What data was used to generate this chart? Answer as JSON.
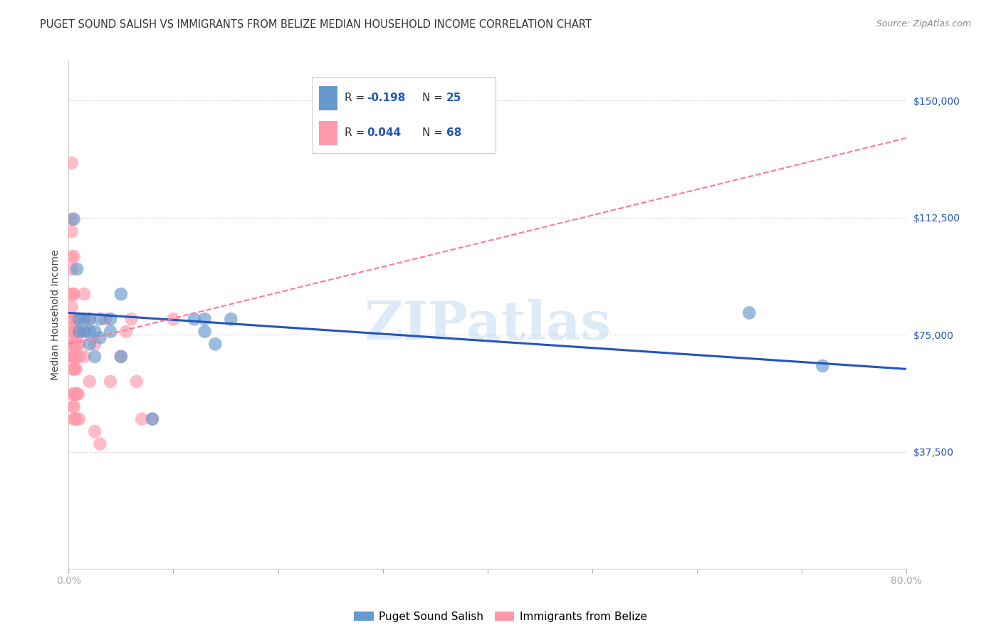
{
  "title": "PUGET SOUND SALISH VS IMMIGRANTS FROM BELIZE MEDIAN HOUSEHOLD INCOME CORRELATION CHART",
  "source": "Source: ZipAtlas.com",
  "ylabel": "Median Household Income",
  "x_min": 0.0,
  "x_max": 0.8,
  "y_min": 0,
  "y_max": 162500,
  "y_ticks": [
    0,
    37500,
    75000,
    112500,
    150000
  ],
  "y_tick_labels": [
    "",
    "$37,500",
    "$75,000",
    "$112,500",
    "$150,000"
  ],
  "x_tick_labels": [
    "0.0%",
    "",
    "",
    "",
    "",
    "",
    "",
    "",
    "80.0%"
  ],
  "x_ticks": [
    0.0,
    0.1,
    0.2,
    0.3,
    0.4,
    0.5,
    0.6,
    0.7,
    0.8
  ],
  "watermark": "ZIPatlas",
  "blue_color": "#6699CC",
  "pink_color": "#FF99AA",
  "blue_line_color": "#2255BB",
  "pink_line_color": "#FF7799",
  "blue_scatter_x": [
    0.005,
    0.008,
    0.01,
    0.01,
    0.015,
    0.015,
    0.02,
    0.02,
    0.02,
    0.025,
    0.025,
    0.03,
    0.03,
    0.04,
    0.04,
    0.05,
    0.05,
    0.08,
    0.12,
    0.13,
    0.13,
    0.14,
    0.155,
    0.65,
    0.72
  ],
  "blue_scatter_y": [
    112000,
    96000,
    80000,
    76000,
    80000,
    76000,
    80000,
    76000,
    72000,
    76000,
    68000,
    80000,
    74000,
    80000,
    76000,
    88000,
    68000,
    48000,
    80000,
    80000,
    76000,
    72000,
    80000,
    82000,
    65000
  ],
  "pink_scatter_x": [
    0.003,
    0.003,
    0.003,
    0.003,
    0.003,
    0.003,
    0.003,
    0.003,
    0.003,
    0.003,
    0.003,
    0.004,
    0.004,
    0.004,
    0.004,
    0.004,
    0.004,
    0.004,
    0.004,
    0.005,
    0.005,
    0.005,
    0.005,
    0.005,
    0.005,
    0.005,
    0.005,
    0.005,
    0.005,
    0.006,
    0.006,
    0.006,
    0.006,
    0.006,
    0.006,
    0.006,
    0.007,
    0.007,
    0.007,
    0.007,
    0.007,
    0.007,
    0.008,
    0.008,
    0.008,
    0.009,
    0.009,
    0.01,
    0.01,
    0.01,
    0.01,
    0.015,
    0.015,
    0.015,
    0.02,
    0.02,
    0.025,
    0.025,
    0.03,
    0.035,
    0.04,
    0.05,
    0.055,
    0.06,
    0.065,
    0.07,
    0.08,
    0.1
  ],
  "pink_scatter_y": [
    130000,
    112000,
    108000,
    100000,
    96000,
    88000,
    84000,
    80000,
    76000,
    72000,
    68000,
    88000,
    80000,
    76000,
    72000,
    68000,
    64000,
    56000,
    52000,
    100000,
    88000,
    80000,
    76000,
    72000,
    68000,
    64000,
    56000,
    52000,
    48000,
    80000,
    76000,
    72000,
    68000,
    64000,
    56000,
    48000,
    80000,
    76000,
    68000,
    64000,
    56000,
    48000,
    76000,
    68000,
    56000,
    72000,
    56000,
    80000,
    72000,
    68000,
    48000,
    88000,
    76000,
    68000,
    80000,
    60000,
    72000,
    44000,
    40000,
    80000,
    60000,
    68000,
    76000,
    80000,
    60000,
    48000,
    48000,
    80000
  ],
  "grid_color": "#DDDDDD",
  "background_color": "#FFFFFF",
  "title_fontsize": 10.5,
  "axis_label_fontsize": 10,
  "tick_fontsize": 10,
  "blue_line_x0": 0.0,
  "blue_line_y0": 82000,
  "blue_line_x1": 0.8,
  "blue_line_y1": 64000,
  "pink_line_x0": 0.0,
  "pink_line_y0": 72000,
  "pink_line_x1": 0.8,
  "pink_line_y1": 138000
}
